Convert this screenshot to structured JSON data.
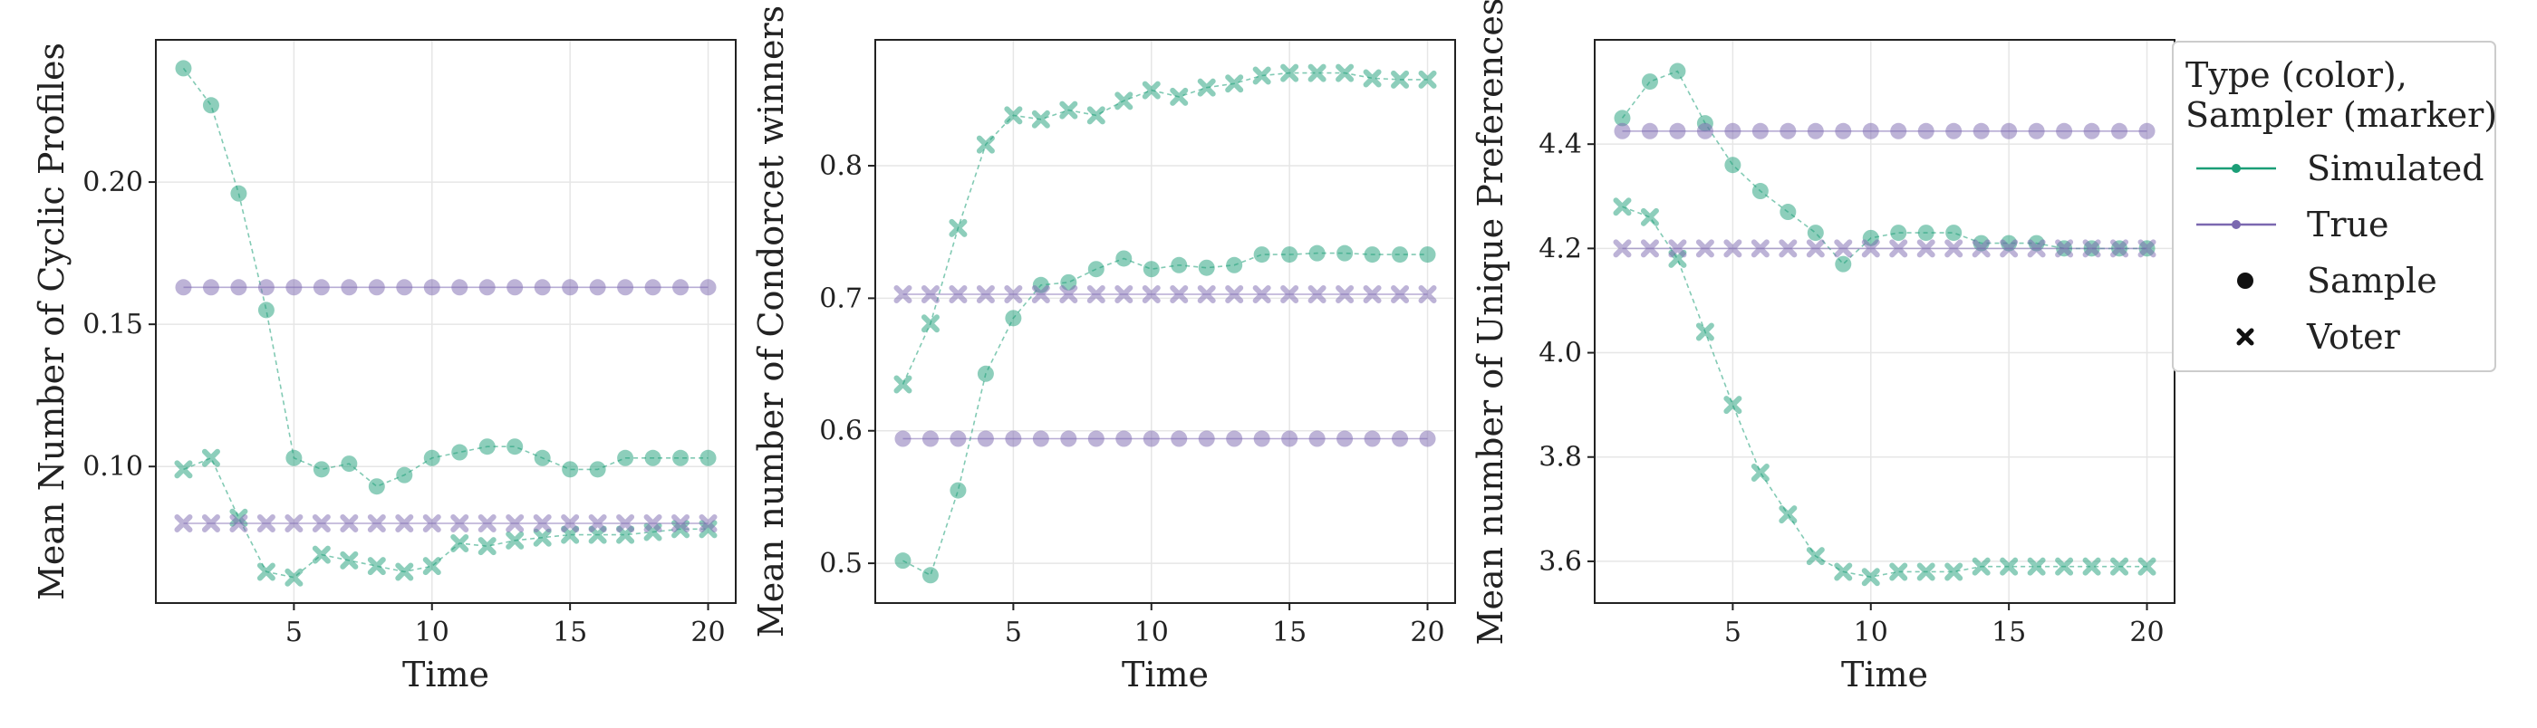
{
  "colors": {
    "simulated": "#1b9e77",
    "true": "#7b68b0",
    "grid": "#e6e6e6",
    "frame": "#222222"
  },
  "legend": {
    "title_line1": "Type (color),",
    "title_line2": "Sampler (marker)",
    "entries": [
      {
        "label": "Simulated",
        "kind": "type",
        "color_key": "simulated"
      },
      {
        "label": "True",
        "kind": "type",
        "color_key": "true"
      },
      {
        "label": "Sample",
        "kind": "marker",
        "marker": "circle"
      },
      {
        "label": "Voter",
        "kind": "marker",
        "marker": "x"
      }
    ]
  },
  "chart_data": [
    {
      "type": "line",
      "xlabel": "Time",
      "ylabel": "Mean Number of Cyclic Profiles",
      "xlim": [
        0,
        21
      ],
      "ylim": [
        0.052,
        0.25
      ],
      "xticks": [
        5,
        10,
        15,
        20
      ],
      "yticks": [
        0.1,
        0.15,
        0.2
      ],
      "ytick_labels": [
        "0.10",
        "0.15",
        "0.20"
      ],
      "x": [
        1,
        2,
        3,
        4,
        5,
        6,
        7,
        8,
        9,
        10,
        11,
        12,
        13,
        14,
        15,
        16,
        17,
        18,
        19,
        20
      ],
      "series": [
        {
          "type": "Simulated",
          "sampler": "Sample",
          "values": [
            0.24,
            0.227,
            0.196,
            0.155,
            0.103,
            0.099,
            0.101,
            0.093,
            0.097,
            0.103,
            0.105,
            0.107,
            0.107,
            0.103,
            0.099,
            0.099,
            0.103,
            0.103,
            0.103,
            0.103
          ]
        },
        {
          "type": "Simulated",
          "sampler": "Voter",
          "values": [
            0.099,
            0.103,
            0.082,
            0.063,
            0.061,
            0.069,
            0.067,
            0.065,
            0.063,
            0.065,
            0.073,
            0.072,
            0.074,
            0.075,
            0.076,
            0.076,
            0.076,
            0.077,
            0.078,
            0.078
          ]
        },
        {
          "type": "True",
          "sampler": "Sample",
          "values": [
            0.163,
            0.163,
            0.163,
            0.163,
            0.163,
            0.163,
            0.163,
            0.163,
            0.163,
            0.163,
            0.163,
            0.163,
            0.163,
            0.163,
            0.163,
            0.163,
            0.163,
            0.163,
            0.163,
            0.163
          ]
        },
        {
          "type": "True",
          "sampler": "Voter",
          "values": [
            0.08,
            0.08,
            0.08,
            0.08,
            0.08,
            0.08,
            0.08,
            0.08,
            0.08,
            0.08,
            0.08,
            0.08,
            0.08,
            0.08,
            0.08,
            0.08,
            0.08,
            0.08,
            0.08,
            0.08
          ]
        }
      ]
    },
    {
      "type": "line",
      "xlabel": "Time",
      "ylabel": "Mean number of Condorcet winners",
      "xlim": [
        0,
        21
      ],
      "ylim": [
        0.47,
        0.895
      ],
      "xticks": [
        5,
        10,
        15,
        20
      ],
      "yticks": [
        0.5,
        0.6,
        0.7,
        0.8
      ],
      "ytick_labels": [
        "0.5",
        "0.6",
        "0.7",
        "0.8"
      ],
      "x": [
        1,
        2,
        3,
        4,
        5,
        6,
        7,
        8,
        9,
        10,
        11,
        12,
        13,
        14,
        15,
        16,
        17,
        18,
        19,
        20
      ],
      "series": [
        {
          "type": "Simulated",
          "sampler": "Sample",
          "values": [
            0.502,
            0.491,
            0.555,
            0.643,
            0.685,
            0.71,
            0.712,
            0.722,
            0.73,
            0.722,
            0.725,
            0.723,
            0.725,
            0.733,
            0.733,
            0.734,
            0.734,
            0.733,
            0.733,
            0.733
          ]
        },
        {
          "type": "Simulated",
          "sampler": "Voter",
          "values": [
            0.635,
            0.681,
            0.753,
            0.816,
            0.838,
            0.835,
            0.842,
            0.838,
            0.849,
            0.857,
            0.852,
            0.859,
            0.862,
            0.868,
            0.87,
            0.87,
            0.87,
            0.866,
            0.865,
            0.865
          ]
        },
        {
          "type": "True",
          "sampler": "Sample",
          "values": [
            0.594,
            0.594,
            0.594,
            0.594,
            0.594,
            0.594,
            0.594,
            0.594,
            0.594,
            0.594,
            0.594,
            0.594,
            0.594,
            0.594,
            0.594,
            0.594,
            0.594,
            0.594,
            0.594,
            0.594
          ]
        },
        {
          "type": "True",
          "sampler": "Voter",
          "values": [
            0.703,
            0.703,
            0.703,
            0.703,
            0.703,
            0.703,
            0.703,
            0.703,
            0.703,
            0.703,
            0.703,
            0.703,
            0.703,
            0.703,
            0.703,
            0.703,
            0.703,
            0.703,
            0.703,
            0.703
          ]
        }
      ]
    },
    {
      "type": "line",
      "xlabel": "Time",
      "ylabel": "Mean number of Unique Preferences",
      "xlim": [
        0,
        21
      ],
      "ylim": [
        3.52,
        4.6
      ],
      "xticks": [
        5,
        10,
        15,
        20
      ],
      "yticks": [
        3.6,
        3.8,
        4.0,
        4.2,
        4.4
      ],
      "ytick_labels": [
        "3.6",
        "3.8",
        "4.0",
        "4.2",
        "4.4"
      ],
      "x": [
        1,
        2,
        3,
        4,
        5,
        6,
        7,
        8,
        9,
        10,
        11,
        12,
        13,
        14,
        15,
        16,
        17,
        18,
        19,
        20
      ],
      "series": [
        {
          "type": "Simulated",
          "sampler": "Sample",
          "values": [
            4.45,
            4.52,
            4.54,
            4.44,
            4.36,
            4.31,
            4.27,
            4.23,
            4.17,
            4.22,
            4.23,
            4.23,
            4.23,
            4.21,
            4.21,
            4.21,
            4.2,
            4.2,
            4.2,
            4.2
          ]
        },
        {
          "type": "Simulated",
          "sampler": "Voter",
          "values": [
            4.28,
            4.26,
            4.18,
            4.04,
            3.9,
            3.77,
            3.69,
            3.61,
            3.58,
            3.57,
            3.58,
            3.58,
            3.58,
            3.59,
            3.59,
            3.59,
            3.59,
            3.59,
            3.59,
            3.59
          ]
        },
        {
          "type": "True",
          "sampler": "Sample",
          "values": [
            4.425,
            4.425,
            4.425,
            4.425,
            4.425,
            4.425,
            4.425,
            4.425,
            4.425,
            4.425,
            4.425,
            4.425,
            4.425,
            4.425,
            4.425,
            4.425,
            4.425,
            4.425,
            4.425,
            4.425
          ]
        },
        {
          "type": "True",
          "sampler": "Voter",
          "values": [
            4.2,
            4.2,
            4.2,
            4.2,
            4.2,
            4.2,
            4.2,
            4.2,
            4.2,
            4.2,
            4.2,
            4.2,
            4.2,
            4.2,
            4.2,
            4.2,
            4.2,
            4.2,
            4.2,
            4.2
          ]
        }
      ]
    }
  ]
}
